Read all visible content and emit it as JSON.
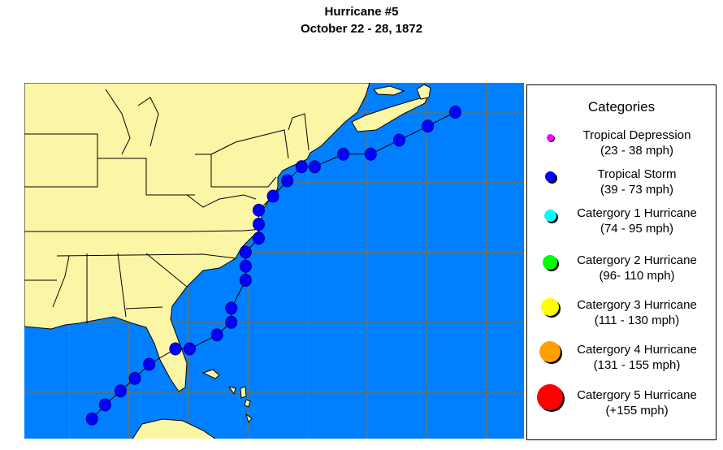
{
  "title": {
    "line1": "Hurricane #5",
    "line2": "October 22 - 28, 1872"
  },
  "colors": {
    "ocean": "#0080ff",
    "land": "#fbf6a6",
    "grid": "#80704a",
    "track": "#0000ff"
  },
  "legend": {
    "title": "Categories",
    "items": [
      {
        "name": "Tropical Depression",
        "range": "(23 - 38 mph)",
        "color": "#ff00ff"
      },
      {
        "name": "Tropical Storm",
        "range": "(39 - 73 mph)",
        "color": "#0000ff"
      },
      {
        "name": "Catergory 1 Hurricane",
        "range": "(74 - 95 mph)",
        "color": "#00ffff"
      },
      {
        "name": "Catergory 2 Hurricane",
        "range": "(96- 110 mph)",
        "color": "#00ff00"
      },
      {
        "name": "Catergory 3 Hurricane",
        "range": "(111 - 130 mph)",
        "color": "#ffff00"
      },
      {
        "name": "Catergory 4 Hurricane",
        "range": "(131 - 155 mph)",
        "color": "#ffa000"
      },
      {
        "name": "Catergory 5 Hurricane",
        "range": "(+155 mph)",
        "color": "#ff0000"
      }
    ]
  },
  "grid": {
    "lon_step_deg": 5,
    "lat_step_deg": 5
  },
  "track": {
    "category": "Tropical Storm",
    "points": [
      [
        23.1,
        -88.1
      ],
      [
        24.1,
        -87.0
      ],
      [
        25.1,
        -85.7
      ],
      [
        26.0,
        -84.5
      ],
      [
        27.0,
        -83.3
      ],
      [
        28.1,
        -81.1
      ],
      [
        28.1,
        -79.9
      ],
      [
        29.1,
        -77.6
      ],
      [
        30.0,
        -76.4
      ],
      [
        31.0,
        -76.4
      ],
      [
        33.0,
        -75.2
      ],
      [
        34.0,
        -75.2
      ],
      [
        35.0,
        -75.2
      ],
      [
        36.0,
        -74.1
      ],
      [
        37.0,
        -74.1
      ],
      [
        38.0,
        -74.1
      ],
      [
        39.0,
        -72.9
      ],
      [
        40.1,
        -71.7
      ],
      [
        41.1,
        -70.5
      ],
      [
        41.1,
        -69.4
      ],
      [
        42.0,
        -67.0
      ],
      [
        42.0,
        -64.7
      ],
      [
        43.0,
        -62.3
      ],
      [
        44.0,
        -59.9
      ],
      [
        45.0,
        -57.6
      ]
    ]
  }
}
